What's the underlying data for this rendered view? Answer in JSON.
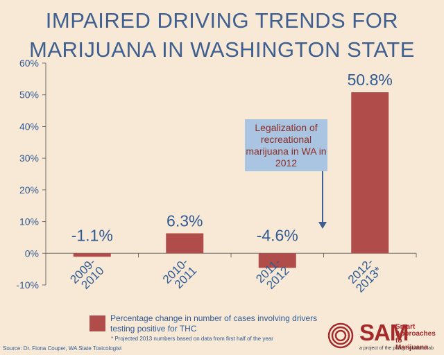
{
  "title_line1": "IMPAIRED DRIVING TRENDS FOR",
  "title_line2": "MARIJUANA IN WASHINGTON STATE",
  "callout": {
    "text": "Legalization of recreational marijuana in WA in 2012"
  },
  "legend": {
    "label": "Percentage change in number of cases involving drivers testing positive for THC"
  },
  "footnote": "* Projected 2013 numbers based on data from first half of the year",
  "source": "Source: Dr. Fiona Couper, WA State Toxicologist",
  "logo": {
    "name": "SAM",
    "tagline_line1": "Smart",
    "tagline_line2": "Approaches to",
    "tagline_line3": "Marijuana",
    "subtitle": "a project of the policy solutions lab"
  },
  "colors": {
    "bar": "#b04c4a",
    "title": "#3e5f8f",
    "background": "#f8e9d7",
    "callout_bg": "#a9c5e2",
    "callout_text": "#8e2d25"
  },
  "chart_data": {
    "type": "bar",
    "title": "IMPAIRED DRIVING TRENDS FOR MARIJUANA IN WASHINGTON STATE",
    "categories": [
      "2009-2010",
      "2010-2011",
      "2011-2012",
      "2012-2013*"
    ],
    "category_lines": [
      [
        "2009-",
        "2010"
      ],
      [
        "2010-",
        "2011"
      ],
      [
        "2011-",
        "2012"
      ],
      [
        "2012-",
        "2013*"
      ]
    ],
    "values": [
      -1.1,
      6.3,
      -4.6,
      50.8
    ],
    "data_labels": [
      "-1.1%",
      "6.3%",
      "-4.6%",
      "50.8%"
    ],
    "ylim": [
      -10,
      60
    ],
    "yticks": [
      -10,
      0,
      10,
      20,
      30,
      40,
      50,
      60
    ],
    "ytick_labels": [
      "-10%",
      "0%",
      "10%",
      "20%",
      "30%",
      "40%",
      "50%",
      "60%"
    ],
    "xlabel": "",
    "ylabel": "",
    "series_name": "Percentage change in number of cases involving drivers testing positive for THC",
    "grid": false
  }
}
